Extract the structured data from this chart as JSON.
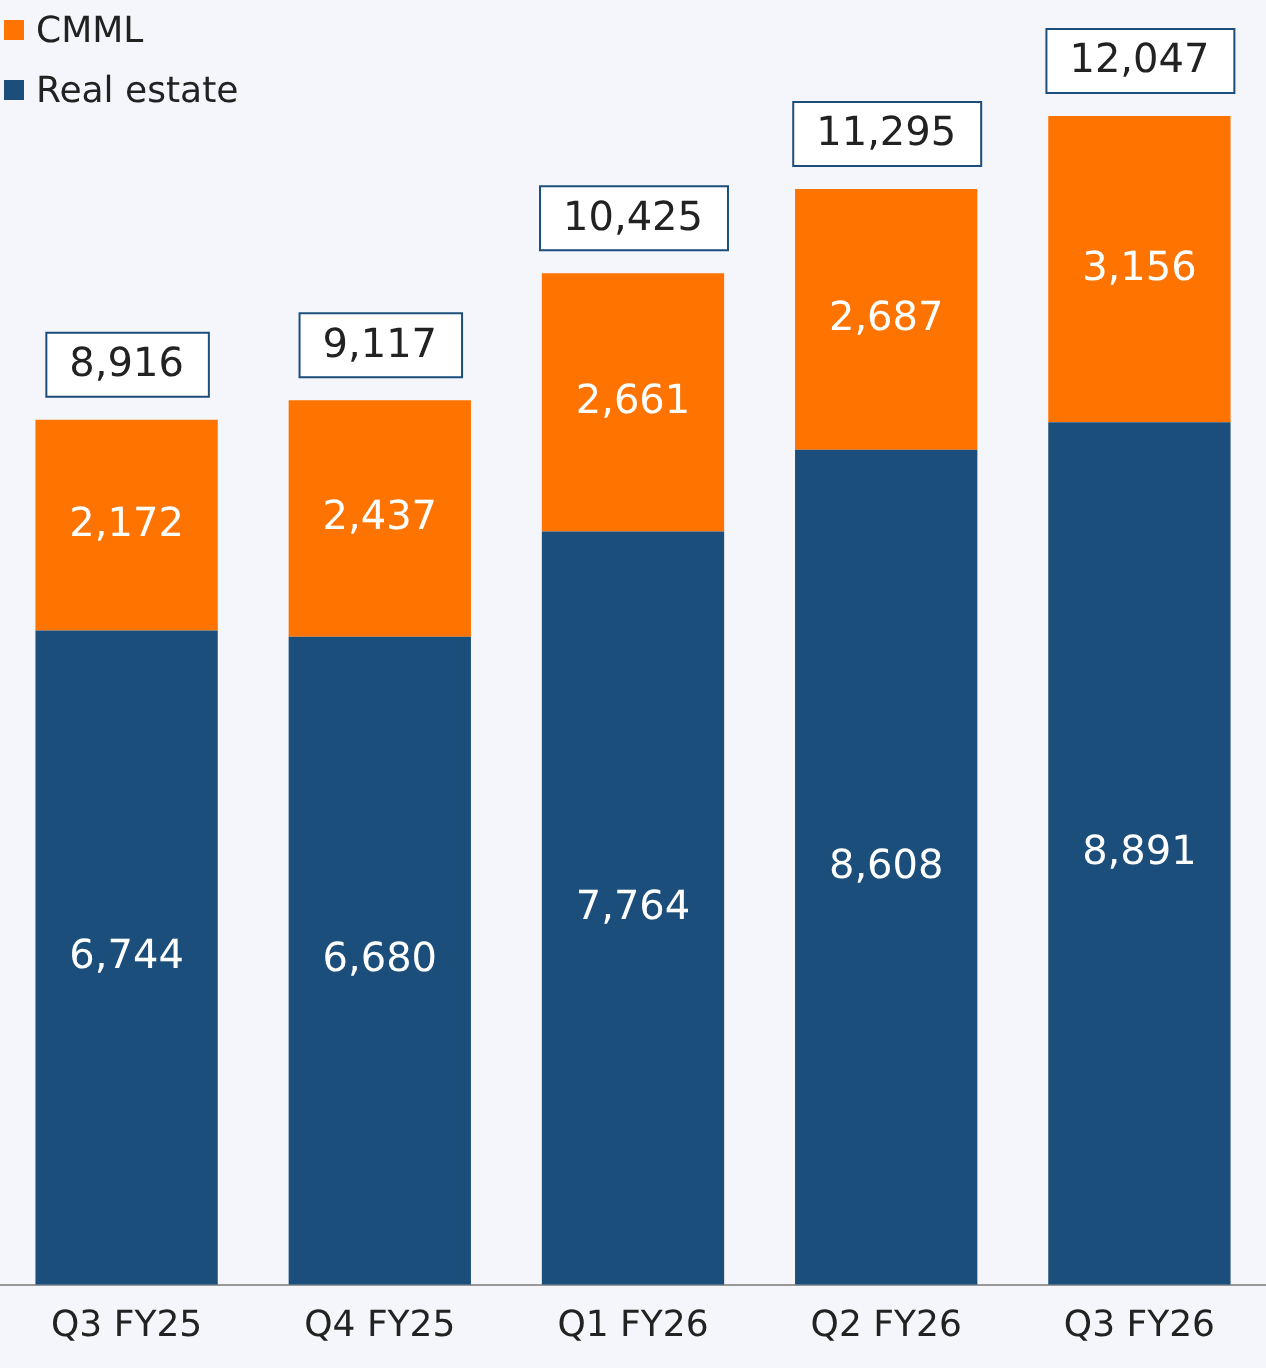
{
  "chart_data": {
    "type": "bar",
    "stacked": true,
    "categories": [
      "Q3 FY25",
      "Q4 FY25",
      "Q1 FY26",
      "Q2 FY26",
      "Q3 FY26"
    ],
    "series": [
      {
        "name": "Real estate",
        "color": "#1b4e7b",
        "values": [
          6744,
          6680,
          7764,
          8608,
          8891
        ],
        "value_labels": [
          "6,744",
          "6,680",
          "7,764",
          "8,608",
          "8,891"
        ]
      },
      {
        "name": "CMML",
        "color": "#ff7300",
        "values": [
          2172,
          2437,
          2661,
          2687,
          3156
        ],
        "value_labels": [
          "2,172",
          "2,437",
          "2,661",
          "2,687",
          "3,156"
        ]
      }
    ],
    "totals": [
      "8,916",
      "9,117",
      "10,425",
      "11,295",
      "12,047"
    ],
    "legend": "top left",
    "tick_labels": "x",
    "grid": false
  }
}
